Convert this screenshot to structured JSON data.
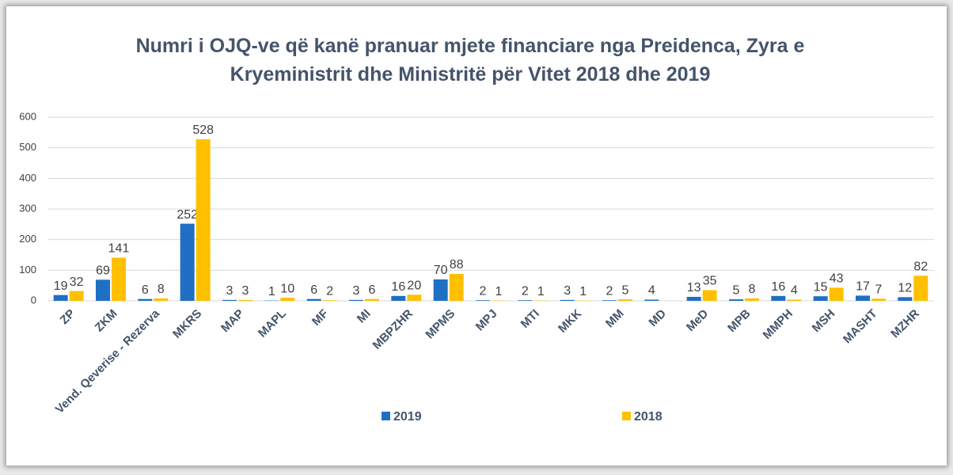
{
  "chart_data": {
    "type": "bar",
    "title": "Numri i OJQ-ve që kanë pranuar mjete financiare nga Preidenca, Zyra e Kryeministrit dhe Ministritë për Vitet 2018 dhe 2019",
    "categories": [
      "ZP",
      "ZKM",
      "Vend. Qeverise - Rezerva",
      "MKRS",
      "MAP",
      "MAPL",
      "MF",
      "MI",
      "MBPZHR",
      "MPMS",
      "MPJ",
      "MTI",
      "MKK",
      "MM",
      "MD",
      "MeD",
      "MPB",
      "MMPH",
      "MSH",
      "MASHT",
      "MZHR"
    ],
    "series": [
      {
        "name": "2019",
        "color": "#1f6fc5",
        "values": [
          19,
          69,
          6,
          252,
          3,
          1,
          6,
          3,
          16,
          70,
          2,
          2,
          3,
          2,
          4,
          13,
          5,
          16,
          15,
          17,
          12
        ]
      },
      {
        "name": "2018",
        "color": "#ffc000",
        "values": [
          32,
          141,
          8,
          528,
          3,
          10,
          2,
          6,
          20,
          88,
          1,
          1,
          1,
          5,
          null,
          35,
          8,
          4,
          43,
          7,
          82
        ]
      }
    ],
    "ylim": [
      0,
      600
    ],
    "yticks": [
      0,
      100,
      200,
      300,
      400,
      500,
      600
    ],
    "grid": true,
    "legend": "bottom"
  }
}
